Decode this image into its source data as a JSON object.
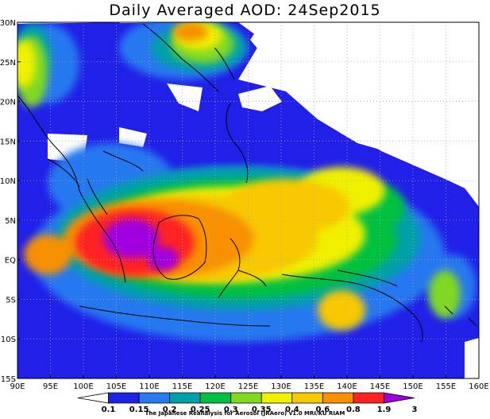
{
  "title": "Daily Averaged AOD: 24Sep2015",
  "credit": "The Japanese Reanalysis for Aerosol (JRAero) v1.0 MRI/KU RIAM",
  "map": {
    "lon_range": [
      90,
      160
    ],
    "lat_range": [
      -15,
      30
    ],
    "lon_ticks": [
      "90E",
      "95E",
      "100E",
      "105E",
      "110E",
      "115E",
      "120E",
      "125E",
      "130E",
      "135E",
      "140E",
      "145E",
      "150E",
      "155E",
      "160E"
    ],
    "lat_ticks": [
      "30N",
      "25N",
      "20N",
      "15N",
      "10N",
      "5N",
      "EQ",
      "5S",
      "10S",
      "15S"
    ],
    "grid": true,
    "grid_style": "dotted"
  },
  "colorbar": {
    "levels": [
      "0.1",
      "0.15",
      "0.2",
      "0.25",
      "0.3",
      "0.35",
      "0.4",
      "0.6",
      "0.8",
      "1.9",
      "3"
    ],
    "colors": [
      "#ffffff",
      "#2020e8",
      "#2878f0",
      "#00a0a8",
      "#00c040",
      "#80d820",
      "#f0f000",
      "#f8c800",
      "#f89000",
      "#ff2020",
      "#a000e0"
    ]
  }
}
